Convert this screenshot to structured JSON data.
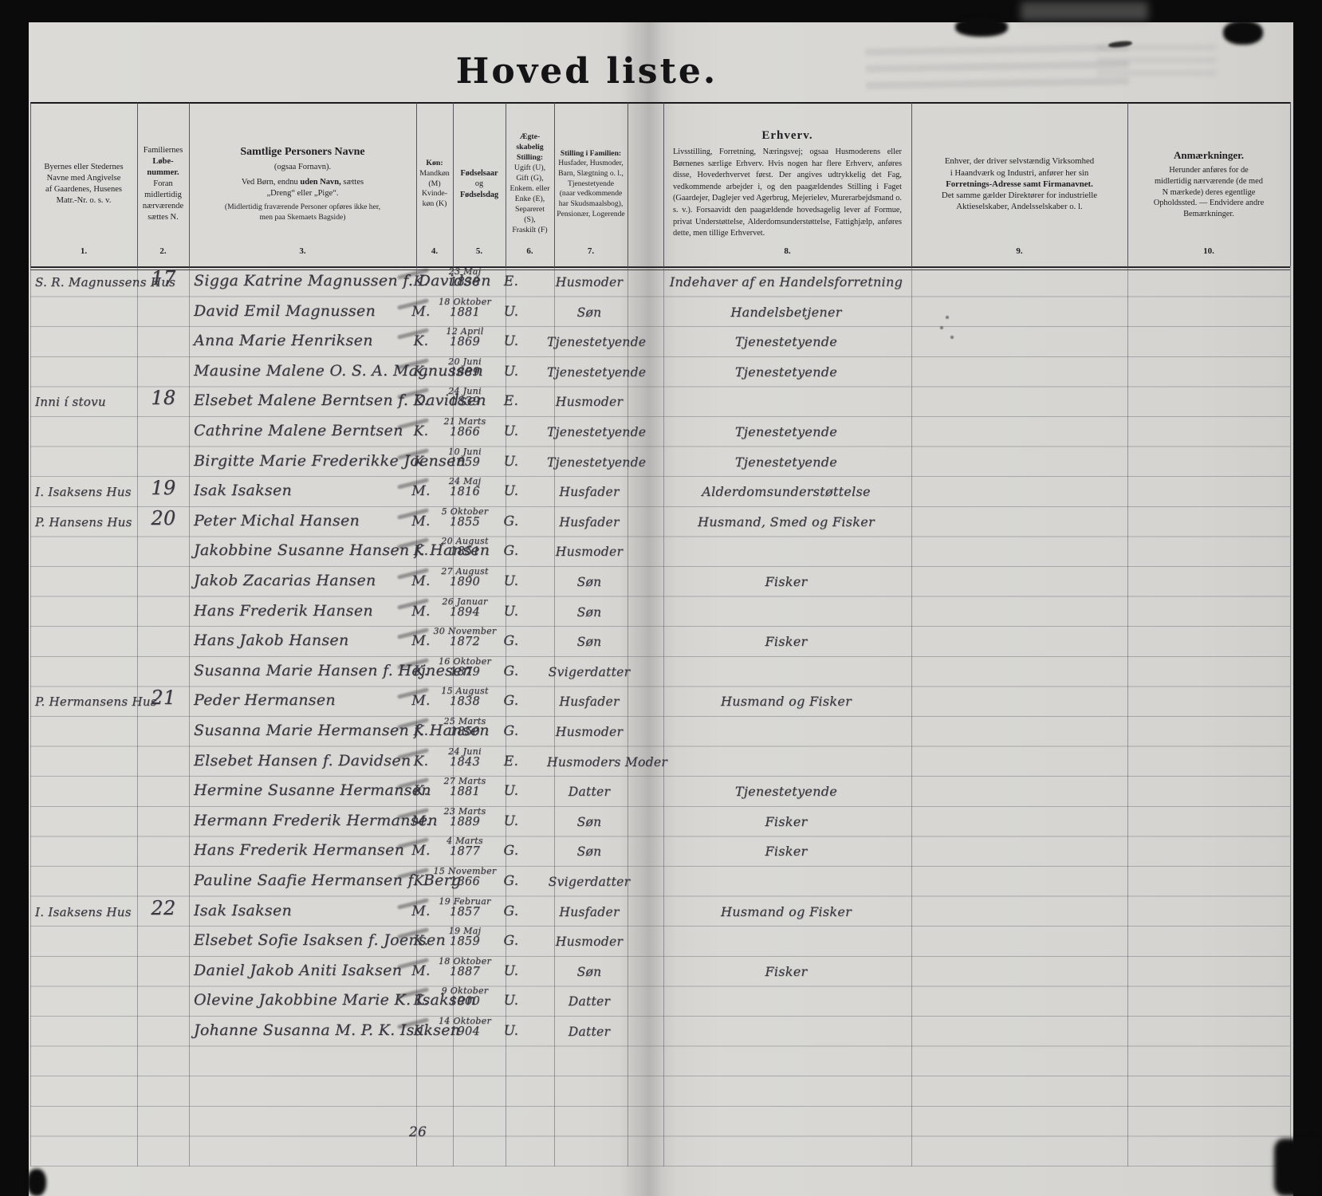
{
  "page": {
    "title": "Hoved liste.",
    "tally": "26"
  },
  "header": {
    "nums": [
      "1.",
      "2.",
      "3.",
      "4.",
      "5.",
      "6.",
      "7.",
      "8.",
      "9.",
      "10."
    ],
    "col1": {
      "l1": "Byernes eller Stedernes",
      "l2": "Navne med Angivelse",
      "l3": "af Gaardenes, Husenes",
      "l4": "Matr.-Nr. o. s. v."
    },
    "col2": {
      "l1": "Familiernes",
      "l2": "Løbe-",
      "l3": "nummer.",
      "l4": "Foran",
      "l5": "midlertidig",
      "l6": "nærværende",
      "l7": "sættes N."
    },
    "col3": {
      "title": "Samtlige Personers Navne",
      "sub": "(ogsaa Fornavn).",
      "r1a": "Ved Børn, endnu ",
      "r1b": "uden Navn,",
      "r1c": " sættes",
      "r2": "„Dreng“ eller „Pige“.",
      "n1": "(Midlertidig fraværende Personer opføres ikke her,",
      "n2": "men paa Skemaets Bagside)"
    },
    "col4": {
      "l1": "Køn:",
      "l2": "Mandkøn",
      "l3": "(M)",
      "l4": "Kvinde-",
      "l5": "køn (K)"
    },
    "col5": {
      "l1": "Fødselsaar",
      "l2": "og",
      "l3": "Fødselsdag"
    },
    "col6": {
      "t1": "Ægte-",
      "t2": "skabelig",
      "t3": "Stilling:",
      "l1": "Ugift (U),",
      "l2": "Gift (G),",
      "l3": "Enkem. eller",
      "l4": "Enke (E),",
      "l5": "Separeret",
      "l6": "(S),",
      "l7": "Fraskilt (F)"
    },
    "col7": {
      "t": "Stilling i Familien:",
      "l1": "Husfader, Husmoder,",
      "l2": "Barn, Slægtning o. l.,",
      "l3": "Tjenestetyende",
      "l4": "(naar vedkommende",
      "l5": "har Skudsmaalsbog),",
      "l6": "Pensionær, Logerende"
    },
    "col8": {
      "t": "Erhverv.",
      "body": "Livsstilling, Forretning, Næringsvej; ogsaa Husmoderens eller Børnenes særlige Erhverv.  Hvis nogen har flere Erhverv, anføres disse, Hovederhvervet først.  Der angives udtrykkelig det Fag, vedkommende arbejder i, og den paagældendes Stilling i Faget (Gaardejer, Daglejer ved Agerbrug, Mejerielev, Murerarbejdsmand o. s. v.).  Forsaavidt den paagældende hovedsagelig lever af Formue, privat Understøttelse, Alderdomsunderstøttelse, Fattighjælp, anføres dette, men tillige Erhvervet."
    },
    "col9": {
      "l1": "Enhver, der driver selvstændig Virksomhed",
      "l2": "i Haandværk og Industri, anfører her sin",
      "l3": "Forretnings-Adresse samt Firmanavnet.",
      "l4": "Det samme gælder Direktører for industrielle",
      "l5": "Aktieselskaber, Andelsselskaber o. l."
    },
    "col10": {
      "t": "Anmærkninger.",
      "l1": "Herunder anføres for de",
      "l2": "midlertidig nærværende (de med",
      "l3": "N mærkede) deres egentlige",
      "l4": "Opholdssted. — Endvidere andre",
      "l5": "Bemærkninger."
    }
  },
  "rows": [
    {
      "place": "S. R. Magnussens Hus",
      "num": "17",
      "name": "Sigga Katrine Magnussen f. Davidsen",
      "sex": "K.",
      "bd": "23 Maj",
      "by": "1838",
      "civ": "E.",
      "fam": "Husmoder",
      "occ": "Indehaver af en Handelsforretning"
    },
    {
      "place": "",
      "num": "",
      "name": "David Emil Magnussen",
      "sex": "M.",
      "bd": "18 Oktober",
      "by": "1881",
      "civ": "U.",
      "fam": "Søn",
      "occ": "Handelsbetjener"
    },
    {
      "place": "",
      "num": "",
      "name": "Anna Marie Henriksen",
      "sex": "K.",
      "bd": "12 April",
      "by": "1869",
      "civ": "U.",
      "fam": "Tjenestetyende",
      "occ": "Tjenestetyende"
    },
    {
      "place": "",
      "num": "",
      "name": "Mausine Malene O. S. A. Magnussen",
      "sex": "K.",
      "bd": "20 Juni",
      "by": "1889",
      "civ": "U.",
      "fam": "Tjenestetyende",
      "occ": "Tjenestetyende"
    },
    {
      "place": "Inni í stovu",
      "num": "18",
      "name": "Elsebet Malene Berntsen f. Davidsen",
      "sex": "K.",
      "bd": "24 Juni",
      "by": "1839",
      "civ": "E.",
      "fam": "Husmoder",
      "occ": ""
    },
    {
      "place": "",
      "num": "",
      "name": "Cathrine Malene Berntsen",
      "sex": "K.",
      "bd": "21 Marts",
      "by": "1866",
      "civ": "U.",
      "fam": "Tjenestetyende",
      "occ": "Tjenestetyende"
    },
    {
      "place": "",
      "num": "",
      "name": "Birgitte Marie Frederikke Joensen",
      "sex": "K.",
      "bd": "10 Juni",
      "by": "1859",
      "civ": "U.",
      "fam": "Tjenestetyende",
      "occ": "Tjenestetyende"
    },
    {
      "place": "I. Isaksens Hus",
      "num": "19",
      "name": "Isak Isaksen",
      "sex": "M.",
      "bd": "24 Maj",
      "by": "1816",
      "civ": "U.",
      "fam": "Husfader",
      "occ": "Alderdomsunderstøttelse"
    },
    {
      "place": "P. Hansens Hus",
      "num": "20",
      "name": "Peter Michal Hansen",
      "sex": "M.",
      "bd": "5 Oktober",
      "by": "1855",
      "civ": "G.",
      "fam": "Husfader",
      "occ": "Husmand, Smed og Fisker"
    },
    {
      "place": "",
      "num": "",
      "name": "Jakobbine Susanne Hansen f. Hansen",
      "sex": "K.",
      "bd": "20 August",
      "by": "1851",
      "civ": "G.",
      "fam": "Husmoder",
      "occ": ""
    },
    {
      "place": "",
      "num": "",
      "name": "Jakob Zacarias Hansen",
      "sex": "M.",
      "bd": "27 August",
      "by": "1890",
      "civ": "U.",
      "fam": "Søn",
      "occ": "Fisker"
    },
    {
      "place": "",
      "num": "",
      "name": "Hans Frederik Hansen",
      "sex": "M.",
      "bd": "26 Januar",
      "by": "1894",
      "civ": "U.",
      "fam": "Søn",
      "occ": ""
    },
    {
      "place": "",
      "num": "",
      "name": "Hans Jakob Hansen",
      "sex": "M.",
      "bd": "30 November",
      "by": "1872",
      "civ": "G.",
      "fam": "Søn",
      "occ": "Fisker"
    },
    {
      "place": "",
      "num": "",
      "name": "Susanna Marie Hansen f. Hejnesen",
      "sex": "K.",
      "bd": "16 Oktober",
      "by": "1879",
      "civ": "G.",
      "fam": "Svigerdatter",
      "occ": ""
    },
    {
      "place": "P. Hermansens Hus",
      "num": "21",
      "name": "Peder Hermansen",
      "sex": "M.",
      "bd": "15 August",
      "by": "1838",
      "civ": "G.",
      "fam": "Husfader",
      "occ": "Husmand og Fisker"
    },
    {
      "place": "",
      "num": "",
      "name": "Susanna Marie Hermansen f. Hansen",
      "sex": "K.",
      "bd": "25 Marts",
      "by": "1850",
      "civ": "G.",
      "fam": "Husmoder",
      "occ": ""
    },
    {
      "place": "",
      "num": "",
      "name": "Elsebet Hansen f. Davidsen",
      "sex": "K.",
      "bd": "24 Juni",
      "by": "1843",
      "civ": "E.",
      "fam": "Husmoders Moder",
      "occ": ""
    },
    {
      "place": "",
      "num": "",
      "name": "Hermine Susanne Hermansen",
      "sex": "K.",
      "bd": "27 Marts",
      "by": "1881",
      "civ": "U.",
      "fam": "Datter",
      "occ": "Tjenestetyende"
    },
    {
      "place": "",
      "num": "",
      "name": "Hermann Frederik Hermansen",
      "sex": "M.",
      "bd": "23 Marts",
      "by": "1889",
      "civ": "U.",
      "fam": "Søn",
      "occ": "Fisker"
    },
    {
      "place": "",
      "num": "",
      "name": "Hans Frederik Hermansen",
      "sex": "M.",
      "bd": "4 Marts",
      "by": "1877",
      "civ": "G.",
      "fam": "Søn",
      "occ": "Fisker"
    },
    {
      "place": "",
      "num": "",
      "name": "Pauline Saafie Hermansen f. Berg",
      "sex": "K.",
      "bd": "15 November",
      "by": "1866",
      "civ": "G.",
      "fam": "Svigerdatter",
      "occ": ""
    },
    {
      "place": "I. Isaksens Hus",
      "num": "22",
      "name": "Isak Isaksen",
      "sex": "M.",
      "bd": "19 Februar",
      "by": "1857",
      "civ": "G.",
      "fam": "Husfader",
      "occ": "Husmand og Fisker"
    },
    {
      "place": "",
      "num": "",
      "name": "Elsebet Sofie Isaksen f. Joensen",
      "sex": "K.",
      "bd": "19 Maj",
      "by": "1859",
      "civ": "G.",
      "fam": "Husmoder",
      "occ": ""
    },
    {
      "place": "",
      "num": "",
      "name": "Daniel Jakob Aniti Isaksen",
      "sex": "M.",
      "bd": "18 Oktober",
      "by": "1887",
      "civ": "U.",
      "fam": "Søn",
      "occ": "Fisker"
    },
    {
      "place": "",
      "num": "",
      "name": "Olevine Jakobbine Marie K. Isaksen",
      "sex": "K.",
      "bd": "9 Oktober",
      "by": "1900",
      "civ": "U.",
      "fam": "Datter",
      "occ": ""
    },
    {
      "place": "",
      "num": "",
      "name": "Johanne Susanna M. P. K. Isaksen",
      "sex": "K.",
      "bd": "14 Oktober",
      "by": "1904",
      "civ": "U.",
      "fam": "Datter",
      "occ": ""
    }
  ]
}
